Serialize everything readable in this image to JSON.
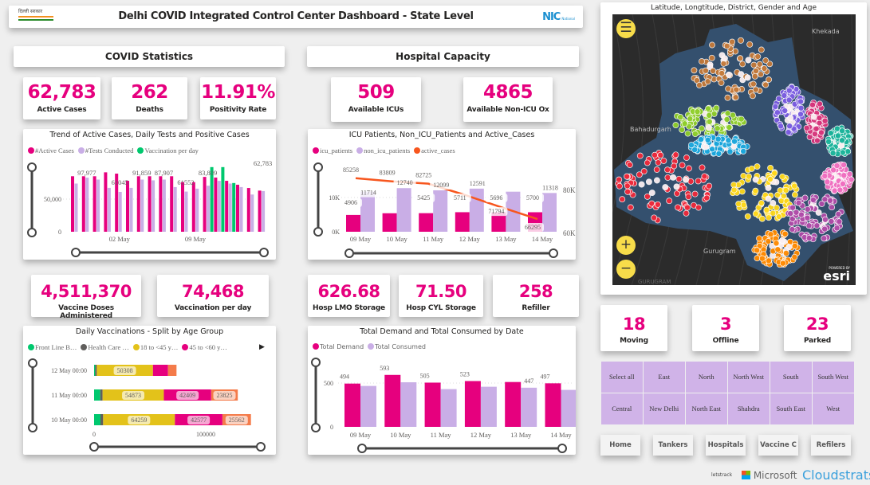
{
  "header": {
    "title": "Delhi COVID Integrated Control Center Dashboard - State Level",
    "left_logo": "दिल्ली सरकार",
    "right_logo": "NIC National Informatics Centre"
  },
  "sections": {
    "covid": "COVID Statistics",
    "hospital": "Hospital Capacity"
  },
  "kpis": {
    "active": {
      "value": "62,783",
      "label": "Active Cases"
    },
    "deaths": {
      "value": "262",
      "label": "Deaths"
    },
    "positivity": {
      "value": "11.91%",
      "label": "Positivity Rate"
    },
    "icus": {
      "value": "509",
      "label": "Available ICUs"
    },
    "nonicu": {
      "value": "4865",
      "label": "Available Non-ICU Ox"
    },
    "doses": {
      "value": "4,511,370",
      "label": "Vaccine Doses Administered"
    },
    "vacday": {
      "value": "74,468",
      "label": "Vaccination per day"
    },
    "lmo": {
      "value": "626.68",
      "label": "Hosp LMO Storage"
    },
    "cyl": {
      "value": "71.50",
      "label": "Hosp CYL Storage"
    },
    "refiller": {
      "value": "258",
      "label": "Refiller"
    },
    "moving": {
      "value": "18",
      "label": "Moving"
    },
    "offline": {
      "value": "3",
      "label": "Offline"
    },
    "parked": {
      "value": "23",
      "label": "Parked"
    }
  },
  "chart_data": [
    {
      "type": "bar",
      "title": "Trend of Active Cases, Daily Tests and Positive Cases",
      "series": [
        {
          "name": "#Active Cases",
          "color": "#e6007e",
          "values": [
            85000,
            85000,
            85000,
            91000,
            89000,
            78000,
            85000,
            85000,
            85000,
            85000,
            76000,
            76000,
            84000,
            83000,
            78000,
            72000,
            67000,
            63000
          ]
        },
        {
          "name": "#Tests Conducted",
          "color": "#c9aee6",
          "values": [
            73800,
            82800,
            79900,
            67200,
            61000,
            67200,
            79900,
            78700,
            79900,
            68400,
            61500,
            66000,
            70500,
            77900,
            73800,
            68400,
            57000,
            62300
          ]
        },
        {
          "name": "Vaccination per day",
          "color": "#00c86e",
          "values": [
            null,
            null,
            null,
            null,
            null,
            null,
            null,
            null,
            null,
            null,
            null,
            null,
            99000,
            99000,
            74600,
            null,
            null,
            null
          ]
        }
      ],
      "x_ticks": [
        "02 May",
        "09 May"
      ],
      "y_ticks": [
        "0",
        "50,000"
      ],
      "data_labels": [
        "97,977",
        "61045",
        "91,859",
        "87,907",
        "61552",
        "83,809",
        "62,783"
      ],
      "ylim": [
        0,
        100000
      ]
    },
    {
      "type": "bar+line",
      "title": "ICU Patients, Non_ICU_Patients and Active_Cases",
      "categories": [
        "09 May",
        "10 May",
        "11 May",
        "12 May",
        "13 May",
        "14 May"
      ],
      "series": [
        {
          "name": "icu_patients",
          "color": "#e6007e",
          "values": [
            4906,
            5400,
            5425,
            5711,
            5696,
            5700
          ],
          "labels": [
            "4906",
            "",
            "5425",
            "5711",
            "5696",
            "5700"
          ]
        },
        {
          "name": "non_icu_patients",
          "color": "#c9aee6",
          "values": [
            11714,
            12740,
            12099,
            12591,
            11700,
            11318
          ],
          "labels": [
            "11714",
            "12740",
            "12099",
            "12591",
            "",
            "11318"
          ]
        },
        {
          "name": "active_cases",
          "color": "#f7561e",
          "axis": "right",
          "values": [
            85258,
            83809,
            82725,
            77500,
            71794,
            66295
          ],
          "labels": [
            "85258",
            "83809",
            "82725",
            "",
            "71794",
            "66295"
          ]
        }
      ],
      "y_ticks": [
        "0K",
        "10K"
      ],
      "y2_ticks": [
        "60K",
        "80K"
      ],
      "ylim": [
        0,
        14000
      ],
      "y2lim": [
        60000,
        90000
      ]
    },
    {
      "type": "stacked-bar-horizontal",
      "title": "Daily Vaccinations - Split by Age Group",
      "categories": [
        "12 May 00:00",
        "11 May 00:00",
        "10 May 00:00"
      ],
      "series": [
        {
          "name": "Front Line B…",
          "color": "#00c86e",
          "values": [
            1000,
            5500,
            5700
          ]
        },
        {
          "name": "Health Care …",
          "color": "#605e5c",
          "values": [
            1400,
            2100,
            2400
          ]
        },
        {
          "name": "18 to <45 y…",
          "color": "#e3c21a",
          "values": [
            50308,
            54873,
            64259
          ],
          "labels": [
            "50308",
            "54873",
            "64259"
          ]
        },
        {
          "name": "45 to <60 y…",
          "color": "#e6007e",
          "values": [
            13500,
            42409,
            42577
          ],
          "labels": [
            "",
            "42409",
            "42577"
          ]
        },
        {
          "name": "",
          "color": "#f47b4a",
          "values": [
            7600,
            23825,
            25562
          ],
          "labels": [
            "",
            "23825",
            "25562"
          ]
        }
      ],
      "x_ticks": [
        "0",
        "100000"
      ],
      "xlim": [
        0,
        140000
      ]
    },
    {
      "type": "bar",
      "title": "Total Demand and Total Consumed by Date",
      "categories": [
        "09 May",
        "10 May",
        "11 May",
        "12 May",
        "13 May",
        "14 May"
      ],
      "series": [
        {
          "name": "Total Demand",
          "color": "#e6007e",
          "values": [
            494,
            593,
            505,
            523,
            512,
            497
          ],
          "labels": [
            "494",
            "593",
            "505",
            "523",
            "",
            "497"
          ]
        },
        {
          "name": "Total Consumed",
          "color": "#c9aee6",
          "values": [
            467,
            509,
            431,
            458,
            447,
            422
          ],
          "labels": [
            "",
            "",
            "",
            "",
            "447",
            ""
          ]
        }
      ],
      "y_ticks": [
        "0",
        "500"
      ],
      "ylim": [
        0,
        600
      ]
    }
  ],
  "map": {
    "title": "Latitude, Longtitude, District, Gender and Age",
    "places": [
      "Khekada",
      "Bahadurgarh",
      "Gurugram",
      "GURUGRAM"
    ],
    "attribution": "esri",
    "powered": "POWERED BY"
  },
  "districts": [
    "Select all",
    "East",
    "North",
    "North West",
    "South",
    "South West",
    "Central",
    "New Delhi",
    "North East",
    "Shahdra",
    "South East",
    "West"
  ],
  "nav": [
    "Home",
    "Tankers",
    "Hospitals",
    "Vaccine C",
    "Refilers"
  ],
  "footer_logos": [
    "letstrack",
    "Microsoft",
    "Cloudstrats"
  ]
}
